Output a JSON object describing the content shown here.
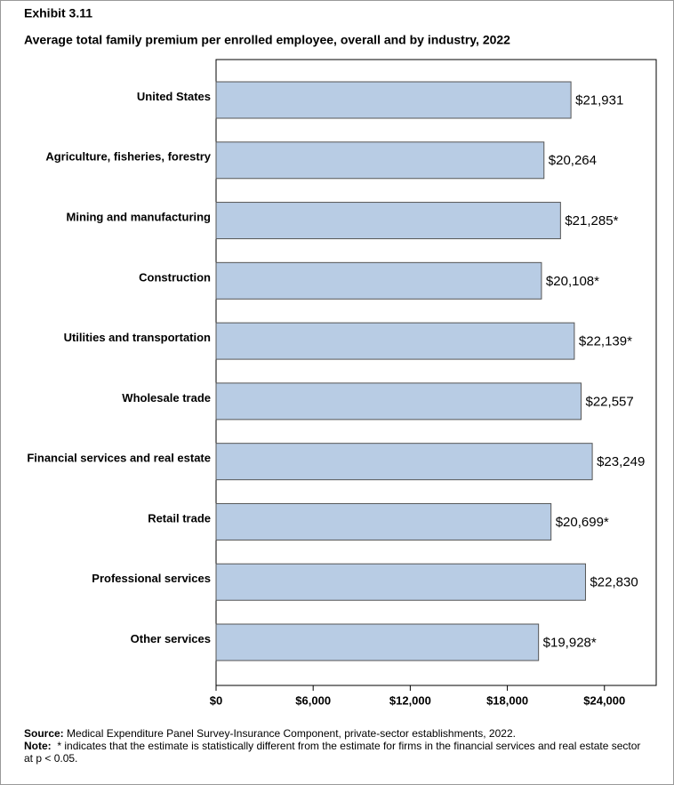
{
  "chart_data": {
    "type": "bar",
    "orientation": "horizontal",
    "title": "Exhibit 3.11",
    "subtitle": "Average total family premium per enrolled employee, overall and by industry, 2022",
    "categories": [
      "United States",
      "Agriculture, fisheries, forestry",
      "Mining and manufacturing",
      "Construction",
      "Utilities and transportation",
      "Wholesale trade",
      "Financial services and real estate",
      "Retail trade",
      "Professional services",
      "Other services"
    ],
    "values": [
      21931,
      20264,
      21285,
      20108,
      22139,
      22557,
      23249,
      20699,
      22830,
      19928
    ],
    "value_labels": [
      "$21,931",
      "$20,264",
      "$21,285*",
      "$20,108*",
      "$22,139*",
      "$22,557",
      "$23,249",
      "$20,699*",
      "$22,830",
      "$19,928*"
    ],
    "color": "#b8cce4",
    "xlim": [
      0,
      27200
    ],
    "xticks": [
      {
        "value": 0,
        "label": "$0"
      },
      {
        "value": 6000,
        "label": "$6,000"
      },
      {
        "value": 12000,
        "label": "$12,000"
      },
      {
        "value": 18000,
        "label": "$18,000"
      },
      {
        "value": 24000,
        "label": "$24,000"
      }
    ],
    "grid": false,
    "source_label": "Source:",
    "source": "Medical Expenditure Panel Survey-Insurance Component, private-sector establishments, 2022.",
    "note_label": "Note:",
    "note": "* indicates that the estimate is statistically different from the estimate for firms in the financial services and real estate sector at p < 0.05."
  }
}
